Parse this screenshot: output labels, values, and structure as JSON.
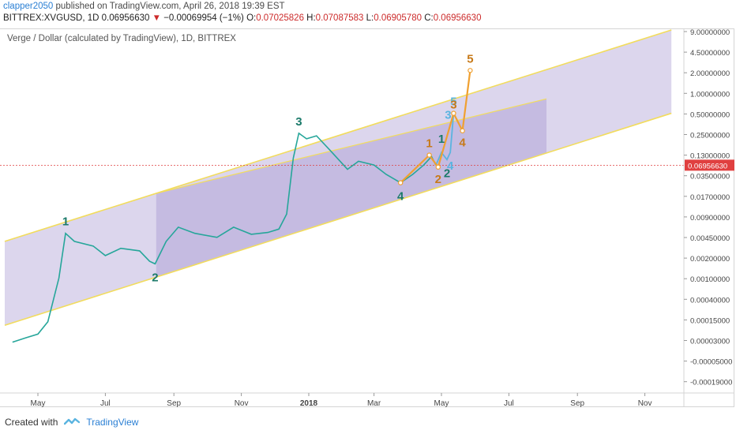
{
  "header": {
    "username": "clapper2050",
    "published_text": "published on TradingView.com, April 26, 2018 19:39 EST",
    "symbol": "BITTREX:XVGUSD",
    "interval": "1D",
    "last": "0.06956630",
    "arrow": "▼",
    "change": "−0.00069954 (−1%)",
    "open_label": "O:",
    "open": "0.07025826",
    "high_label": "H:",
    "high": "0.07087583",
    "low_label": "L:",
    "low": "0.06905780",
    "close_label": "C:",
    "close": "0.06956630"
  },
  "chart_title": "Verge / Dollar (calculated by TradingView), 1D, BITTREX",
  "footer": {
    "created_with": "Created with",
    "brand": "TradingView"
  },
  "colors": {
    "up": "#26a69a",
    "down": "#ef5350",
    "channel_line": "#f2dc5d",
    "channel_fill": "#b9addb",
    "inner_fill": "#a99bd2",
    "wave_orange": "#f0a030",
    "wave_blue": "#5ab4e0",
    "label_green": "#1b7a6a",
    "label_orange": "#c77a1a",
    "price_line": "#e04040"
  },
  "chart_data": {
    "type": "line",
    "log_scale": true,
    "x_ticks": [
      "May",
      "Jul",
      "Sep",
      "Nov",
      "2018",
      "Mar",
      "May",
      "Jul",
      "Sep",
      "Nov"
    ],
    "y_ticks": [
      "9.00000000",
      "4.50000000",
      "2.00000000",
      "1.00000000",
      "0.50000000",
      "0.25000000",
      "0.13000000",
      "0.03500000",
      "0.01700000",
      "0.00900000",
      "0.00450000",
      "0.00200000",
      "0.00100000",
      "0.00040000",
      "0.00015000",
      "0.00003000",
      "-0.00005000",
      "-0.00019000"
    ],
    "current_price_label": "0.06956630",
    "price_series": {
      "name": "XVGUSD",
      "points": [
        [
          "2017-04-08",
          0.00012
        ],
        [
          "2017-04-20",
          0.00014
        ],
        [
          "2017-05-01",
          0.00016
        ],
        [
          "2017-05-10",
          0.00025
        ],
        [
          "2017-05-20",
          0.0012
        ],
        [
          "2017-05-26",
          0.006
        ],
        [
          "2017-06-03",
          0.0045
        ],
        [
          "2017-06-20",
          0.0038
        ],
        [
          "2017-07-01",
          0.0027
        ],
        [
          "2017-07-15",
          0.0035
        ],
        [
          "2017-08-01",
          0.0032
        ],
        [
          "2017-08-10",
          0.0022
        ],
        [
          "2017-08-15",
          0.002
        ],
        [
          "2017-08-25",
          0.0045
        ],
        [
          "2017-09-05",
          0.0075
        ],
        [
          "2017-09-20",
          0.006
        ],
        [
          "2017-10-10",
          0.0052
        ],
        [
          "2017-10-25",
          0.0075
        ],
        [
          "2017-11-10",
          0.0058
        ],
        [
          "2017-11-25",
          0.0062
        ],
        [
          "2017-12-05",
          0.007
        ],
        [
          "2017-12-12",
          0.012
        ],
        [
          "2017-12-18",
          0.09
        ],
        [
          "2017-12-23",
          0.22
        ],
        [
          "2017-12-30",
          0.18
        ],
        [
          "2018-01-08",
          0.2
        ],
        [
          "2018-01-20",
          0.12
        ],
        [
          "2018-02-05",
          0.06
        ],
        [
          "2018-02-15",
          0.08
        ],
        [
          "2018-03-01",
          0.07
        ],
        [
          "2018-03-12",
          0.05
        ],
        [
          "2018-03-25",
          0.037
        ],
        [
          "2018-04-05",
          0.05
        ],
        [
          "2018-04-15",
          0.07
        ],
        [
          "2018-04-22",
          0.095
        ],
        [
          "2018-04-26",
          0.0696
        ]
      ]
    },
    "channel": {
      "upper": [
        [
          "2017-04-01",
          0.0045
        ],
        [
          "2018-11-25",
          9.0
        ]
      ],
      "lower": [
        [
          "2017-04-01",
          0.00022
        ],
        [
          "2018-11-25",
          0.45
        ]
      ],
      "inner_box": {
        "x_start": "2017-08-16",
        "x_end": "2018-08-04"
      }
    },
    "wave_labels_green": [
      {
        "label": "1",
        "date": "2017-05-26",
        "price": 0.006
      },
      {
        "label": "2",
        "date": "2017-08-15",
        "price": 0.002
      },
      {
        "label": "3",
        "date": "2017-12-23",
        "price": 0.22
      },
      {
        "label": "4",
        "date": "2018-03-25",
        "price": 0.037
      },
      {
        "label": "3",
        "date": "2018-05-07",
        "price": 0.28
      },
      {
        "label": "4",
        "date": "2018-05-09",
        "price": 0.11
      },
      {
        "label": "5",
        "date": "2018-05-12",
        "price": 0.45
      }
    ],
    "wave_labels_orange": [
      {
        "label": "1",
        "date": "2018-04-20",
        "price": 0.1
      },
      {
        "label": "2",
        "date": "2018-04-28",
        "price": 0.065
      },
      {
        "label": "3",
        "date": "2018-05-12",
        "price": 0.4
      },
      {
        "label": "4",
        "date": "2018-05-20",
        "price": 0.24
      },
      {
        "label": "5",
        "date": "2018-05-27",
        "price": 2.1
      }
    ],
    "wave_small": [
      {
        "label": "1",
        "date": "2018-05-01",
        "price": 0.11
      },
      {
        "label": "2",
        "date": "2018-05-06",
        "price": 0.085
      }
    ],
    "projection_orange": [
      [
        "2018-03-25",
        0.037
      ],
      [
        "2018-04-20",
        0.1
      ],
      [
        "2018-04-28",
        0.065
      ],
      [
        "2018-05-12",
        0.45
      ],
      [
        "2018-05-20",
        0.24
      ],
      [
        "2018-05-27",
        2.1
      ]
    ],
    "projection_blue": [
      [
        "2018-04-26",
        0.0696
      ],
      [
        "2018-05-01",
        0.11
      ],
      [
        "2018-05-06",
        0.085
      ],
      [
        "2018-05-09",
        0.11
      ],
      [
        "2018-05-12",
        0.45
      ]
    ]
  }
}
